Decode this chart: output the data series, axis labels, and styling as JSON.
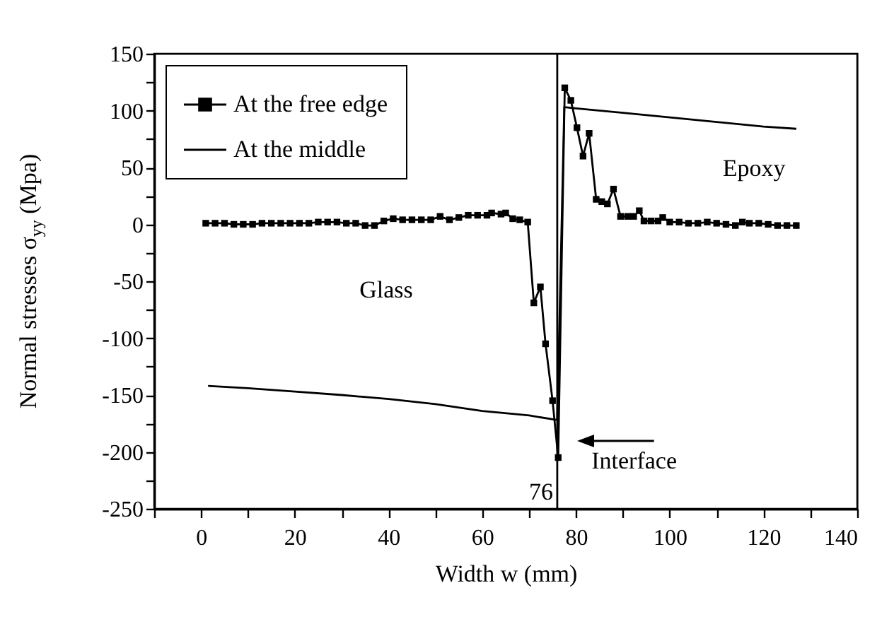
{
  "chart_data": {
    "type": "line",
    "xlabel": "Width w (mm)",
    "ylabel": "Normal stresses σ$_{yy}$ (Mpa)",
    "xlim": [
      -10,
      140
    ],
    "ylim": [
      -250,
      150
    ],
    "xticks": [
      {
        "value": -10,
        "label": null
      },
      0,
      {
        "value": 10,
        "label": null
      },
      20,
      {
        "value": 30,
        "label": null
      },
      40,
      {
        "value": 50,
        "label": null
      },
      60,
      {
        "value": 70,
        "label": null
      },
      80,
      {
        "value": 90,
        "label": null
      },
      100,
      {
        "value": 110,
        "label": null
      },
      120,
      {
        "value": 130,
        "label": null
      },
      140
    ],
    "yticks": [
      -250,
      {
        "value": -225,
        "label": null
      },
      -200,
      {
        "value": -175,
        "label": null
      },
      -150,
      {
        "value": -125,
        "label": null
      },
      -100,
      {
        "value": -75,
        "label": null
      },
      -50,
      {
        "value": -25,
        "label": null
      },
      0,
      {
        "value": 25,
        "label": null
      },
      50,
      {
        "value": 75,
        "label": null
      },
      100,
      {
        "value": 125,
        "label": null
      },
      150
    ],
    "legend": "top left",
    "series": [
      {
        "name": "At the free edge",
        "color": "#000000",
        "marker": "square",
        "x": [
          1,
          3,
          5,
          7,
          9,
          11,
          13,
          15,
          17,
          19,
          21,
          23,
          25,
          27,
          29,
          31,
          33,
          35,
          37,
          39,
          41,
          43,
          45,
          47,
          49,
          51,
          53,
          55,
          57,
          59,
          61,
          62,
          64,
          65,
          66.5,
          68,
          69.7,
          71,
          72.4,
          73.5,
          75,
          76.2,
          77.6,
          78.9,
          80.2,
          81.5,
          82.8,
          84.3,
          85.5,
          86.7,
          88,
          89.5,
          91,
          92.3,
          93.5,
          94.5,
          96,
          97.5,
          98.5,
          100,
          102,
          104,
          106,
          108,
          110,
          112,
          114,
          115.5,
          117,
          119,
          121,
          123,
          125,
          127
        ],
        "values": [
          1,
          1,
          1,
          0,
          0,
          0,
          1,
          1,
          1,
          1,
          1,
          1,
          2,
          2,
          2,
          1,
          1,
          -1,
          -1,
          3,
          5,
          4,
          4,
          4,
          4,
          7,
          4,
          6,
          8,
          8,
          8,
          10,
          9,
          10,
          5,
          4,
          2,
          -69,
          -55,
          -105,
          -155,
          -205,
          120,
          109,
          85,
          60,
          80,
          22,
          20,
          18,
          31,
          7,
          7,
          7,
          12,
          3,
          3,
          3,
          6,
          2,
          2,
          1,
          1,
          2,
          1,
          0,
          -1,
          2,
          1,
          1,
          0,
          -1,
          -1,
          -1
        ]
      },
      {
        "name": "At the middle",
        "color": "#000000",
        "marker": "none",
        "x": [
          1.5,
          10,
          20,
          30,
          40,
          50,
          60,
          70,
          76,
          77.5,
          80,
          90,
          100,
          110,
          120,
          127
        ],
        "values": [
          -142,
          -144,
          -147,
          -150,
          -153.5,
          -158,
          -164,
          -168,
          -172,
          103,
          102,
          98,
          94,
          90,
          86,
          84
        ]
      }
    ],
    "ref_lines": [
      {
        "axis": "x",
        "value": 76,
        "label": "76",
        "color": "#000000"
      }
    ],
    "annotations": [
      "Glass",
      "Epoxy",
      "Interface"
    ]
  }
}
